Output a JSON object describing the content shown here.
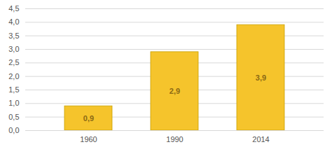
{
  "chart_data": {
    "type": "bar",
    "categories": [
      "1960",
      "1990",
      "2014"
    ],
    "values": [
      0.9,
      2.9,
      3.9
    ],
    "value_labels": [
      "0,9",
      "2,9",
      "3,9"
    ],
    "data_labels": true,
    "color": "#F5C42C",
    "ylim": [
      0,
      4.5
    ],
    "yticks": [
      {
        "value": 0.0,
        "label": "0,0"
      },
      {
        "value": 0.5,
        "label": "0,5"
      },
      {
        "value": 1.0,
        "label": "1,0"
      },
      {
        "value": 1.5,
        "label": "1,5"
      },
      {
        "value": 2.0,
        "label": "2,0"
      },
      {
        "value": 2.5,
        "label": "2,5"
      },
      {
        "value": 3.0,
        "label": "3,0"
      },
      {
        "value": 3.5,
        "label": "3,5"
      },
      {
        "value": 4.0,
        "label": "4,0"
      },
      {
        "value": 4.5,
        "label": "4,5"
      }
    ],
    "grid": true
  }
}
